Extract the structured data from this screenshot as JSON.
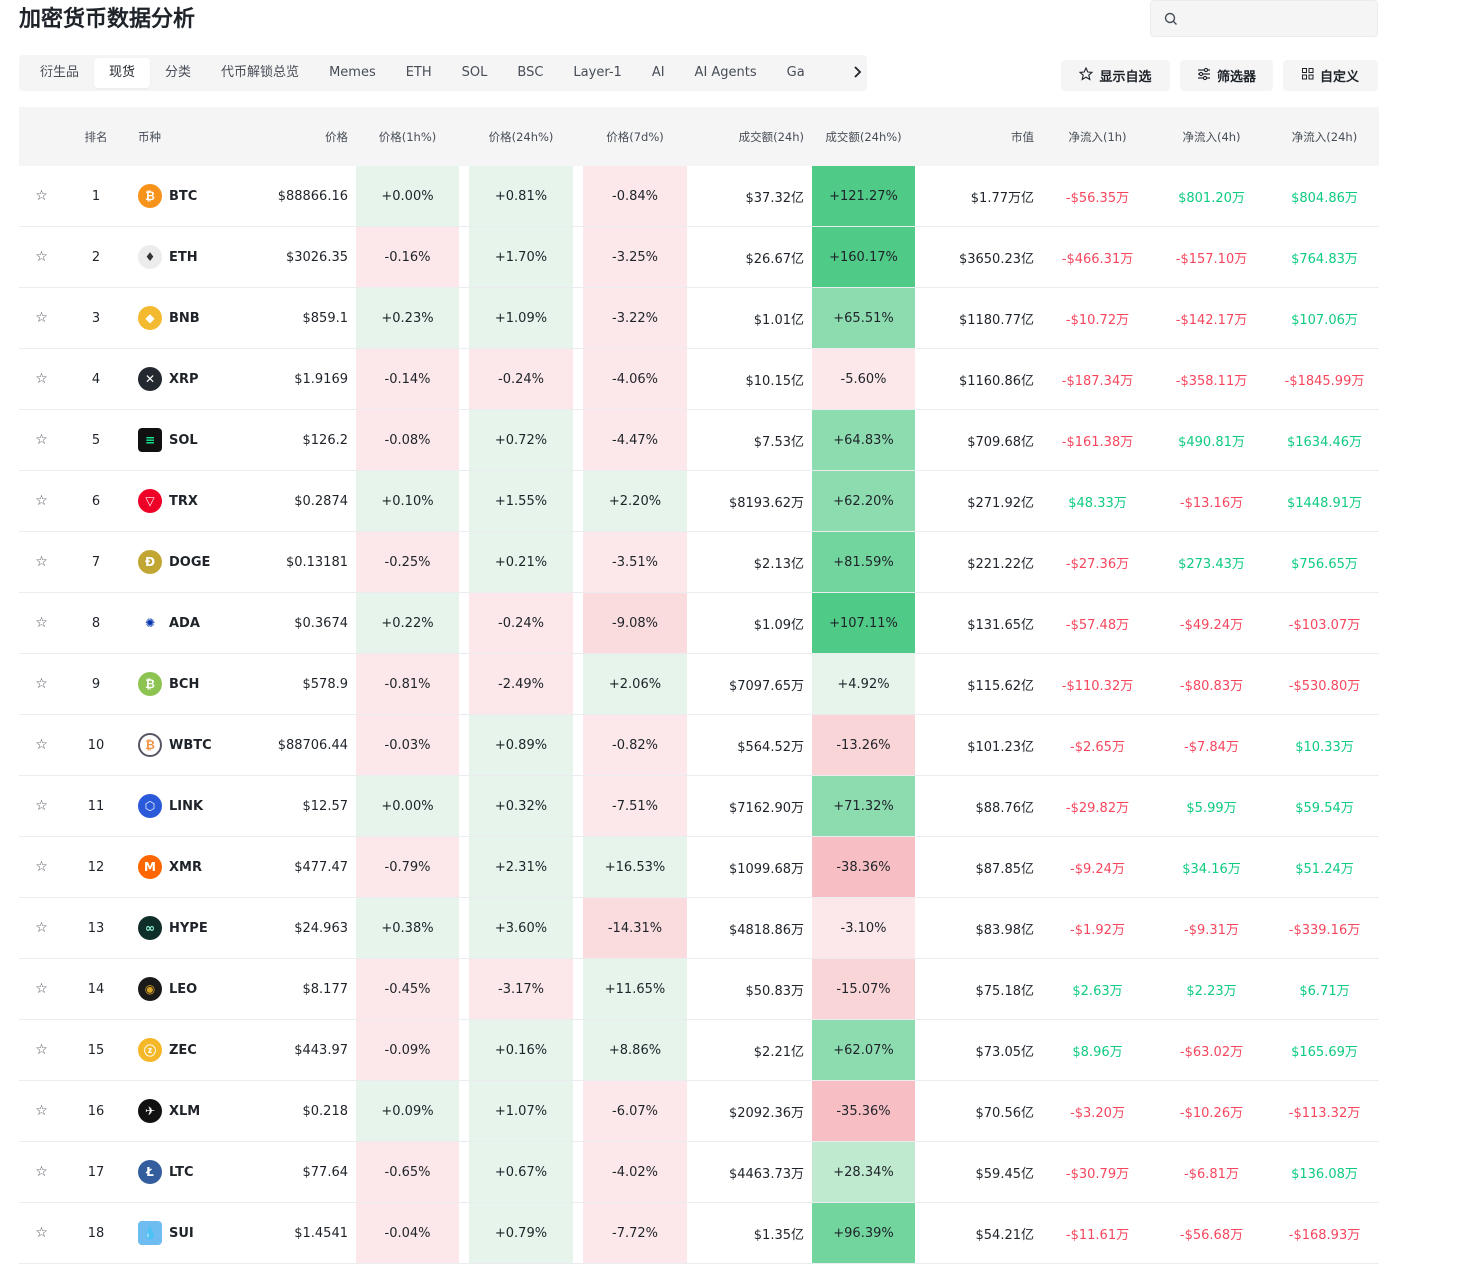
{
  "page_title": "加密货币数据分析",
  "tabs": [
    "衍生品",
    "现货",
    "分类",
    "代币解锁总览",
    "Memes",
    "ETH",
    "SOL",
    "BSC",
    "Layer-1",
    "AI",
    "AI Agents",
    "Ga"
  ],
  "active_tab": 1,
  "buttons": {
    "favorites": "显示自选",
    "filter": "筛选器",
    "customize": "自定义"
  },
  "columns": [
    "排名",
    "币种",
    "价格",
    "价格(1h%)",
    "价格(24h%)",
    "价格(7d%)",
    "成交额(24h)",
    "成交额(24h%)",
    "市值",
    "净流入(1h)",
    "净流入(4h)",
    "净流入(24h)"
  ],
  "colors": {
    "positive": "#0ecb81",
    "negative": "#f6465d"
  },
  "rows": [
    {
      "rank": "1",
      "symbol": "BTC",
      "price": "$88866.16",
      "p1h": "+0.00%",
      "p24h": "+0.81%",
      "p7d": "-0.84%",
      "vol": "$37.32亿",
      "volpct": "+121.27%",
      "mcap": "$1.77万亿",
      "n1h": "-$56.35万",
      "n4h": "$801.20万",
      "n24h": "$804.86万"
    },
    {
      "rank": "2",
      "symbol": "ETH",
      "price": "$3026.35",
      "p1h": "-0.16%",
      "p24h": "+1.70%",
      "p7d": "-3.25%",
      "vol": "$26.67亿",
      "volpct": "+160.17%",
      "mcap": "$3650.23亿",
      "n1h": "-$466.31万",
      "n4h": "-$157.10万",
      "n24h": "$764.83万"
    },
    {
      "rank": "3",
      "symbol": "BNB",
      "price": "$859.1",
      "p1h": "+0.23%",
      "p24h": "+1.09%",
      "p7d": "-3.22%",
      "vol": "$1.01亿",
      "volpct": "+65.51%",
      "mcap": "$1180.77亿",
      "n1h": "-$10.72万",
      "n4h": "-$142.17万",
      "n24h": "$107.06万"
    },
    {
      "rank": "4",
      "symbol": "XRP",
      "price": "$1.9169",
      "p1h": "-0.14%",
      "p24h": "-0.24%",
      "p7d": "-4.06%",
      "vol": "$10.15亿",
      "volpct": "-5.60%",
      "mcap": "$1160.86亿",
      "n1h": "-$187.34万",
      "n4h": "-$358.11万",
      "n24h": "-$1845.99万"
    },
    {
      "rank": "5",
      "symbol": "SOL",
      "price": "$126.2",
      "p1h": "-0.08%",
      "p24h": "+0.72%",
      "p7d": "-4.47%",
      "vol": "$7.53亿",
      "volpct": "+64.83%",
      "mcap": "$709.68亿",
      "n1h": "-$161.38万",
      "n4h": "$490.81万",
      "n24h": "$1634.46万"
    },
    {
      "rank": "6",
      "symbol": "TRX",
      "price": "$0.2874",
      "p1h": "+0.10%",
      "p24h": "+1.55%",
      "p7d": "+2.20%",
      "vol": "$8193.62万",
      "volpct": "+62.20%",
      "mcap": "$271.92亿",
      "n1h": "$48.33万",
      "n4h": "-$13.16万",
      "n24h": "$1448.91万"
    },
    {
      "rank": "7",
      "symbol": "DOGE",
      "price": "$0.13181",
      "p1h": "-0.25%",
      "p24h": "+0.21%",
      "p7d": "-3.51%",
      "vol": "$2.13亿",
      "volpct": "+81.59%",
      "mcap": "$221.22亿",
      "n1h": "-$27.36万",
      "n4h": "$273.43万",
      "n24h": "$756.65万"
    },
    {
      "rank": "8",
      "symbol": "ADA",
      "price": "$0.3674",
      "p1h": "+0.22%",
      "p24h": "-0.24%",
      "p7d": "-9.08%",
      "vol": "$1.09亿",
      "volpct": "+107.11%",
      "mcap": "$131.65亿",
      "n1h": "-$57.48万",
      "n4h": "-$49.24万",
      "n24h": "-$103.07万"
    },
    {
      "rank": "9",
      "symbol": "BCH",
      "price": "$578.9",
      "p1h": "-0.81%",
      "p24h": "-2.49%",
      "p7d": "+2.06%",
      "vol": "$7097.65万",
      "volpct": "+4.92%",
      "mcap": "$115.62亿",
      "n1h": "-$110.32万",
      "n4h": "-$80.83万",
      "n24h": "-$530.80万"
    },
    {
      "rank": "10",
      "symbol": "WBTC",
      "price": "$88706.44",
      "p1h": "-0.03%",
      "p24h": "+0.89%",
      "p7d": "-0.82%",
      "vol": "$564.52万",
      "volpct": "-13.26%",
      "mcap": "$101.23亿",
      "n1h": "-$2.65万",
      "n4h": "-$7.84万",
      "n24h": "$10.33万"
    },
    {
      "rank": "11",
      "symbol": "LINK",
      "price": "$12.57",
      "p1h": "+0.00%",
      "p24h": "+0.32%",
      "p7d": "-7.51%",
      "vol": "$7162.90万",
      "volpct": "+71.32%",
      "mcap": "$88.76亿",
      "n1h": "-$29.82万",
      "n4h": "$5.99万",
      "n24h": "$59.54万"
    },
    {
      "rank": "12",
      "symbol": "XMR",
      "price": "$477.47",
      "p1h": "-0.79%",
      "p24h": "+2.31%",
      "p7d": "+16.53%",
      "vol": "$1099.68万",
      "volpct": "-38.36%",
      "mcap": "$87.85亿",
      "n1h": "-$9.24万",
      "n4h": "$34.16万",
      "n24h": "$51.24万"
    },
    {
      "rank": "13",
      "symbol": "HYPE",
      "price": "$24.963",
      "p1h": "+0.38%",
      "p24h": "+3.60%",
      "p7d": "-14.31%",
      "vol": "$4818.86万",
      "volpct": "-3.10%",
      "mcap": "$83.98亿",
      "n1h": "-$1.92万",
      "n4h": "-$9.31万",
      "n24h": "-$339.16万"
    },
    {
      "rank": "14",
      "symbol": "LEO",
      "price": "$8.177",
      "p1h": "-0.45%",
      "p24h": "-3.17%",
      "p7d": "+11.65%",
      "vol": "$50.83万",
      "volpct": "-15.07%",
      "mcap": "$75.18亿",
      "n1h": "$2.63万",
      "n4h": "$2.23万",
      "n24h": "$6.71万"
    },
    {
      "rank": "15",
      "symbol": "ZEC",
      "price": "$443.97",
      "p1h": "-0.09%",
      "p24h": "+0.16%",
      "p7d": "+8.86%",
      "vol": "$2.21亿",
      "volpct": "+62.07%",
      "mcap": "$73.05亿",
      "n1h": "$8.96万",
      "n4h": "-$63.02万",
      "n24h": "$165.69万"
    },
    {
      "rank": "16",
      "symbol": "XLM",
      "price": "$0.218",
      "p1h": "+0.09%",
      "p24h": "+1.07%",
      "p7d": "-6.07%",
      "vol": "$2092.36万",
      "volpct": "-35.36%",
      "mcap": "$70.56亿",
      "n1h": "-$3.20万",
      "n4h": "-$10.26万",
      "n24h": "-$113.32万"
    },
    {
      "rank": "17",
      "symbol": "LTC",
      "price": "$77.64",
      "p1h": "-0.65%",
      "p24h": "+0.67%",
      "p7d": "-4.02%",
      "vol": "$4463.73万",
      "volpct": "+28.34%",
      "mcap": "$59.45亿",
      "n1h": "-$30.79万",
      "n4h": "-$6.81万",
      "n24h": "$136.08万"
    },
    {
      "rank": "18",
      "symbol": "SUI",
      "price": "$1.4541",
      "p1h": "-0.04%",
      "p24h": "+0.79%",
      "p7d": "-7.72%",
      "vol": "$1.35亿",
      "volpct": "+96.39%",
      "mcap": "$54.21亿",
      "n1h": "-$11.61万",
      "n4h": "-$56.68万",
      "n24h": "-$168.93万"
    }
  ],
  "coin_icons": {
    "BTC": {
      "bg": "#f7931a",
      "glyph": "₿"
    },
    "ETH": {
      "bg": "#ececec",
      "glyph": "♦",
      "fg": "#343434"
    },
    "BNB": {
      "bg": "#f3ba2f",
      "glyph": "◆"
    },
    "XRP": {
      "bg": "#23292f",
      "glyph": "✕"
    },
    "SOL": {
      "bg": "#111111",
      "glyph": "≡",
      "fg": "#14f195",
      "square": true
    },
    "TRX": {
      "bg": "#ef0027",
      "glyph": "▽"
    },
    "DOGE": {
      "bg": "#c2a633",
      "glyph": "Ð"
    },
    "ADA": {
      "bg": "#ffffff",
      "glyph": "✺",
      "fg": "#0033ad"
    },
    "BCH": {
      "bg": "#8dc351",
      "glyph": "₿"
    },
    "WBTC": {
      "bg": "#ffffff",
      "glyph": "₿",
      "fg": "#f09242",
      "ring": "#5a5564"
    },
    "LINK": {
      "bg": "#2a5ada",
      "glyph": "⬡"
    },
    "XMR": {
      "bg": "#ff6600",
      "glyph": "M"
    },
    "HYPE": {
      "bg": "#0f2e2a",
      "glyph": "∞",
      "fg": "#97fce4"
    },
    "LEO": {
      "bg": "#1a1a1a",
      "glyph": "◉",
      "fg": "#d8a428"
    },
    "ZEC": {
      "bg": "#f4b728",
      "glyph": "ⓩ"
    },
    "XLM": {
      "bg": "#111111",
      "glyph": "✈"
    },
    "LTC": {
      "bg": "#345d9d",
      "glyph": "Ł"
    },
    "SUI": {
      "bg": "#6fbcf0",
      "glyph": "💧",
      "square": true
    }
  }
}
